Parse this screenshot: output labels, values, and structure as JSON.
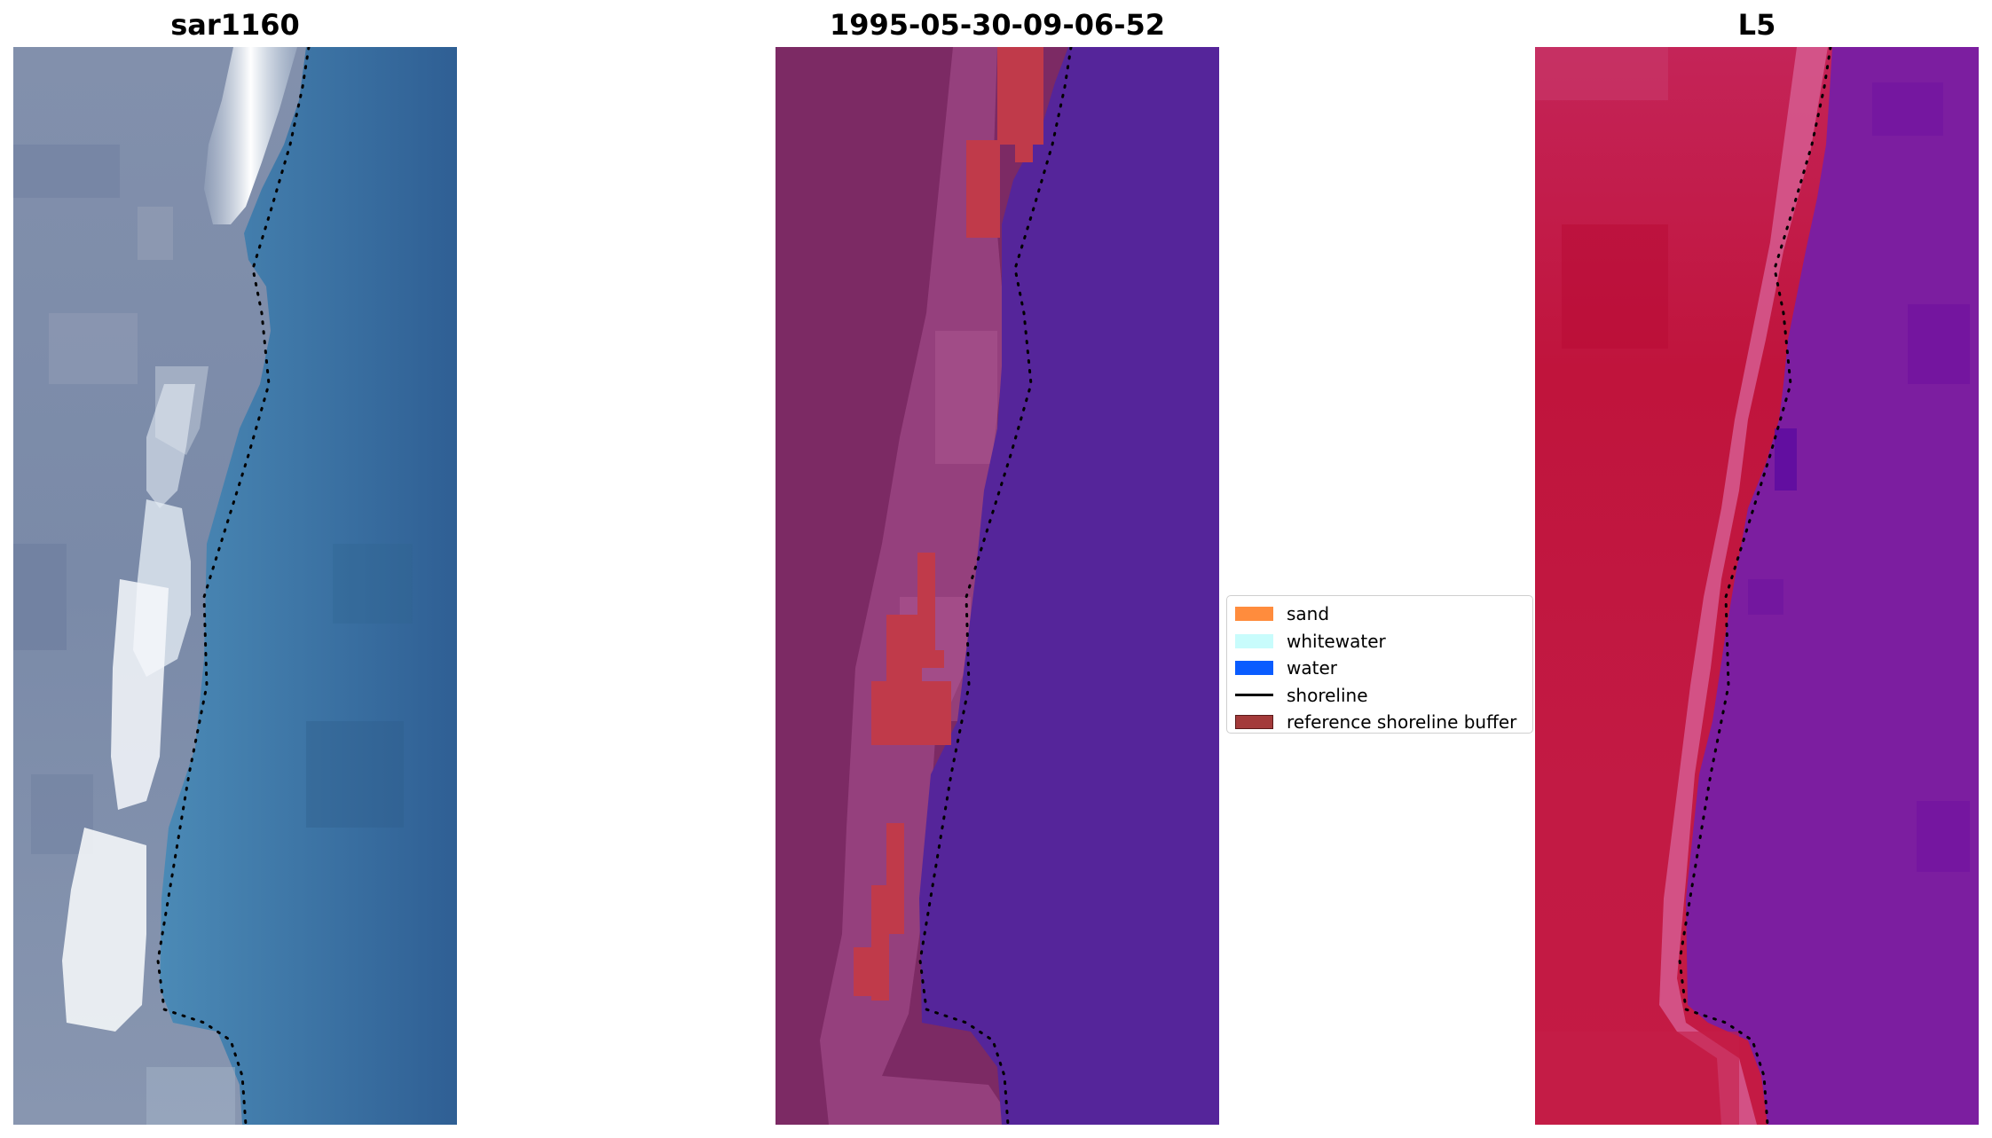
{
  "panels": [
    {
      "title": "sar1160",
      "image": "true-color satellite image of coast"
    },
    {
      "title": "1995-05-30-09-06-52",
      "image": "classified image with shoreline buffer"
    },
    {
      "title": "L5",
      "image": "water index image"
    }
  ],
  "legend": {
    "items": [
      {
        "label": "sand",
        "color": "#ff8c3d",
        "kind": "patch"
      },
      {
        "label": "whitewater",
        "color": "#c8fcfc",
        "kind": "patch"
      },
      {
        "label": "water",
        "color": "#0a5cff",
        "kind": "patch"
      },
      {
        "label": "shoreline",
        "color": "#000000",
        "kind": "line"
      },
      {
        "label": "reference shoreline buffer",
        "color": "#a33a3a",
        "kind": "patch"
      }
    ]
  },
  "colors": {
    "sar_land": "#8490ac",
    "sar_water": "#3a76a6",
    "class_land": "#7c2a64",
    "class_water": "#55259a",
    "class_buffer": "#c03a4a",
    "index_land": "#c01a48",
    "index_water": "#7c1ea0",
    "shoreline": "#000000"
  }
}
